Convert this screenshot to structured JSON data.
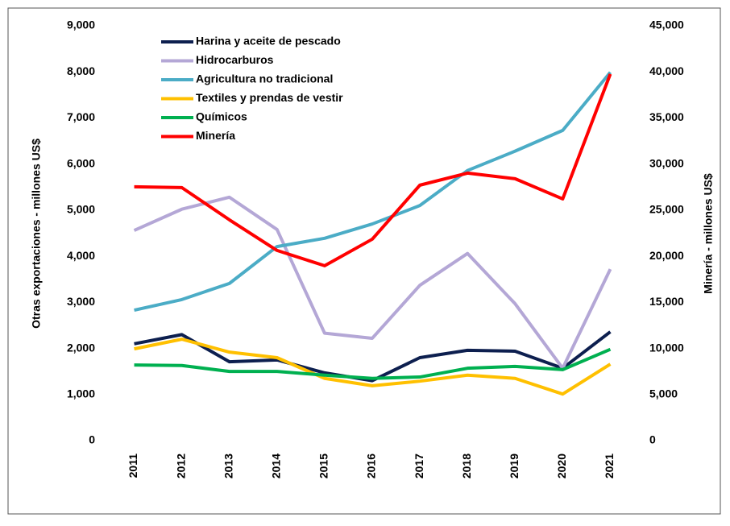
{
  "chart_data": {
    "type": "line",
    "y_label": "Otras exportaciones  - millones US$",
    "y2_label": "Minería - millones US$",
    "categories": [
      "2011",
      "2012",
      "2013",
      "2014",
      "2015",
      "2016",
      "2017",
      "2018",
      "2019",
      "2020",
      "2021"
    ],
    "ylim": [
      0,
      9000
    ],
    "yticks": [
      0,
      {
        "value": 1000,
        "label": "1,000"
      },
      {
        "value": 2000,
        "label": "2,000"
      },
      {
        "value": 3000,
        "label": "3,000"
      },
      {
        "value": 4000,
        "label": "4,000"
      },
      {
        "value": 5000,
        "label": "5,000"
      },
      {
        "value": 6000,
        "label": "6,000"
      },
      {
        "value": 7000,
        "label": "7,000"
      },
      {
        "value": 8000,
        "label": "8,000"
      },
      {
        "value": 9000,
        "label": "9,000"
      }
    ],
    "y2lim": [
      0,
      45000
    ],
    "y2ticks": [
      0,
      {
        "value": 5000,
        "label": "5,000"
      },
      {
        "value": 10000,
        "label": "10,000"
      },
      {
        "value": 15000,
        "label": "15,000"
      },
      {
        "value": 20000,
        "label": "20,000"
      },
      {
        "value": 25000,
        "label": "25,000"
      },
      {
        "value": 30000,
        "label": "30,000"
      },
      {
        "value": 35000,
        "label": "35,000"
      },
      {
        "value": 40000,
        "label": "40,000"
      },
      {
        "value": 45000,
        "label": "45,000"
      }
    ],
    "grid": false,
    "legend": "upper left",
    "series": [
      {
        "name": "Harina y aceite de pescado",
        "color": "#0d1f4f",
        "values": [
          2100,
          2300,
          1710,
          1750,
          1470,
          1300,
          1800,
          1960,
          1940,
          1570,
          2360
        ]
      },
      {
        "name": "Hidrocarburos",
        "color": "#b4a7d6",
        "values": [
          4560,
          5020,
          5280,
          4580,
          2330,
          2220,
          3370,
          4060,
          2970,
          1570,
          3720
        ]
      },
      {
        "name": "Agricultura no tradicional",
        "color": "#4bacc6",
        "values": [
          2830,
          3060,
          3410,
          4210,
          4390,
          4700,
          5100,
          5860,
          6280,
          6730,
          7990
        ]
      },
      {
        "name": "Textiles y prendas de vestir",
        "color": "#ffc000",
        "values": [
          1990,
          2200,
          1920,
          1800,
          1350,
          1190,
          1290,
          1420,
          1350,
          1010,
          1660
        ]
      },
      {
        "name": "Químicos",
        "color": "#00b050",
        "values": [
          1640,
          1630,
          1500,
          1500,
          1420,
          1350,
          1380,
          1570,
          1610,
          1540,
          1980
        ]
      },
      {
        "name": "Minería",
        "color": "#ff0000",
        "axis": "y2",
        "values": [
          27530,
          27450,
          23950,
          20630,
          18970,
          21850,
          27710,
          29020,
          28410,
          26220,
          39770
        ]
      }
    ]
  }
}
